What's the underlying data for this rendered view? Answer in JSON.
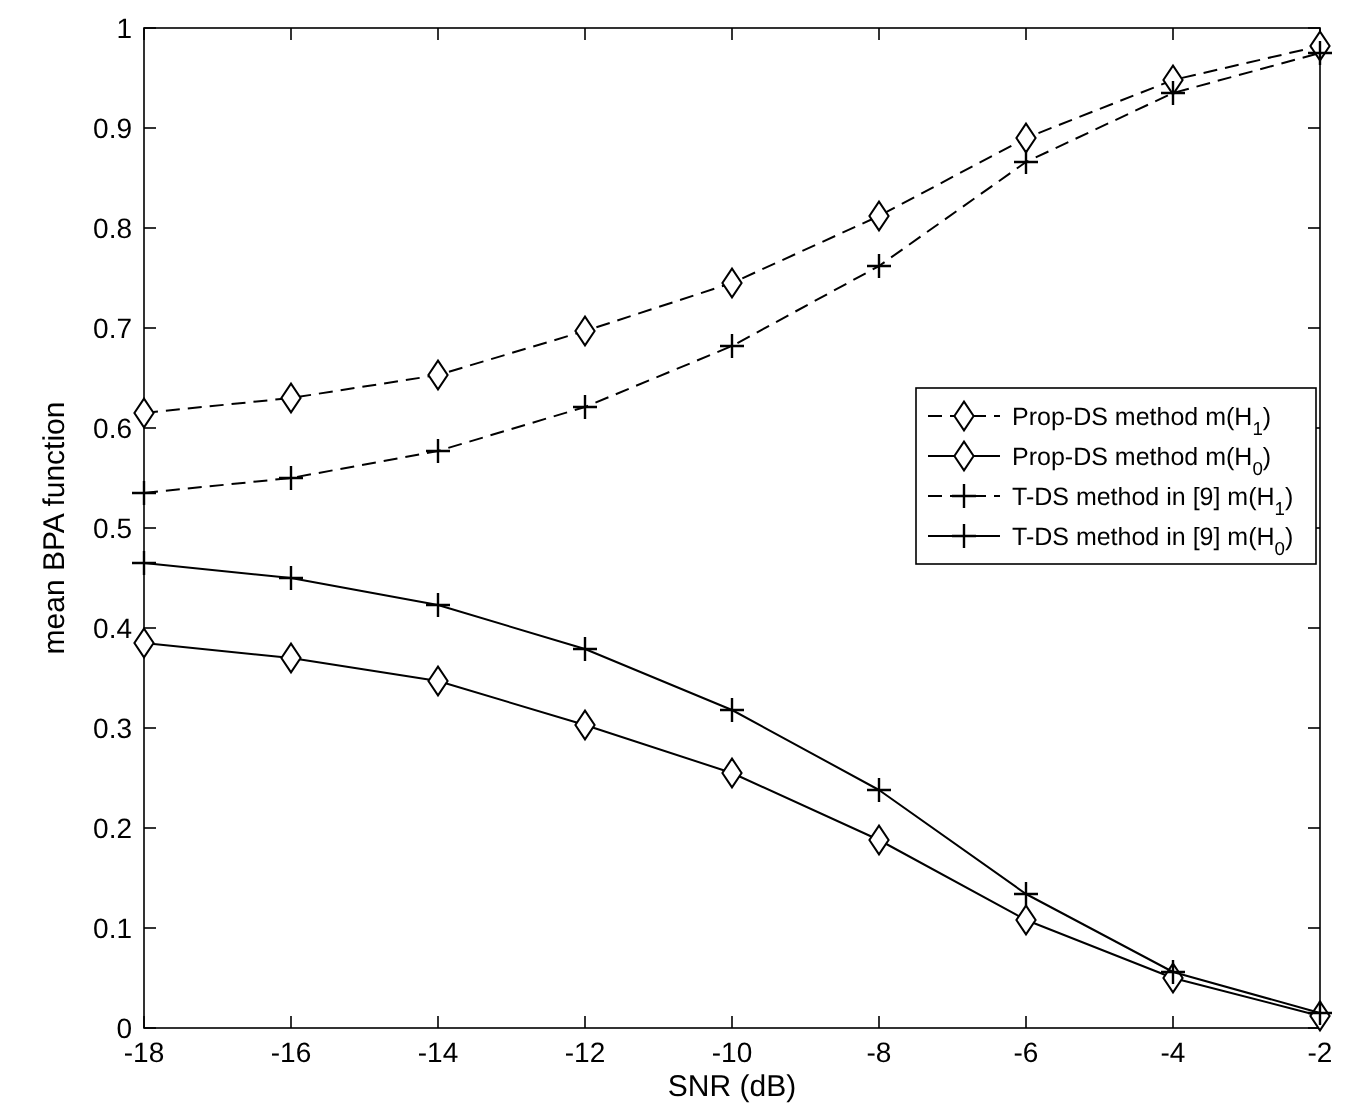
{
  "chart_data": {
    "type": "line",
    "xlabel": "SNR (dB)",
    "ylabel": "mean BPA function",
    "x": [
      -18,
      -16,
      -14,
      -12,
      -10,
      -8,
      -6,
      -4,
      -2
    ],
    "xlim": [
      -18,
      -2
    ],
    "xticks": [
      -18,
      -16,
      -14,
      -12,
      -10,
      -8,
      -6,
      -4,
      -2
    ],
    "ylim": [
      0,
      1
    ],
    "yticks": [
      0,
      0.1,
      0.2,
      0.3,
      0.4,
      0.5,
      0.6,
      0.7,
      0.8,
      0.9,
      1
    ],
    "grid": false,
    "legend": "right",
    "series": [
      {
        "name": "Prop-DS method m(H$_{1}$)",
        "color": "#000000",
        "marker": "diamond",
        "line_style": "dashed",
        "values": [
          0.615,
          0.63,
          0.653,
          0.697,
          0.745,
          0.812,
          0.89,
          0.948,
          0.982
        ]
      },
      {
        "name": "Prop-DS method m(H$_{0}$)",
        "color": "#000000",
        "marker": "diamond",
        "line_style": "solid",
        "values": [
          0.385,
          0.37,
          0.347,
          0.303,
          0.255,
          0.188,
          0.108,
          0.05,
          0.012
        ]
      },
      {
        "name": "T-DS method in [9] m(H$_{1}$)",
        "color": "#000000",
        "marker": "cross",
        "line_style": "dashed",
        "values": [
          0.535,
          0.55,
          0.577,
          0.621,
          0.682,
          0.762,
          0.866,
          0.935,
          0.975
        ]
      },
      {
        "name": "T-DS method in [9] m(H$_{0}$)",
        "color": "#000000",
        "marker": "cross",
        "line_style": "solid",
        "values": [
          0.465,
          0.45,
          0.423,
          0.379,
          0.318,
          0.238,
          0.134,
          0.056,
          0.015
        ]
      }
    ]
  }
}
